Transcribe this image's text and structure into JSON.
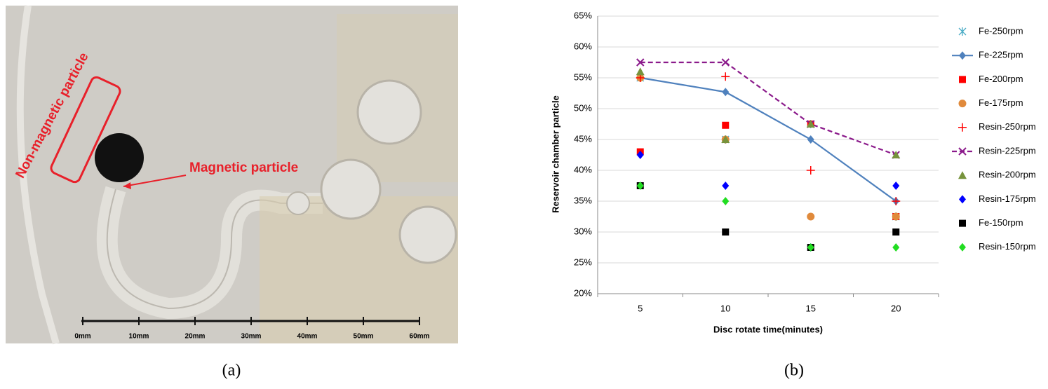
{
  "photo": {
    "annotations": [
      "Non-magnetic particle",
      "Magnetic particle"
    ],
    "scale_labels": [
      "0mm",
      "10mm",
      "20mm",
      "30mm",
      "40mm",
      "50mm",
      "60mm"
    ]
  },
  "panel_labels": [
    "(a)",
    "(b)"
  ],
  "chart_data": {
    "type": "line",
    "x_label": "Disc rotate time(minutes)",
    "y_label": "Reservoir chamber particle",
    "categories": [
      "5",
      "10",
      "15",
      "20"
    ],
    "ylim": [
      20,
      65
    ],
    "yticks": [
      {
        "value": 20,
        "label": "20%"
      },
      {
        "value": 25,
        "label": "25%"
      },
      {
        "value": 30,
        "label": "30%"
      },
      {
        "value": 35,
        "label": "35%"
      },
      {
        "value": 40,
        "label": "40%"
      },
      {
        "value": 45,
        "label": "45%"
      },
      {
        "value": 50,
        "label": "50%"
      },
      {
        "value": 55,
        "label": "55%"
      },
      {
        "value": 60,
        "label": "60%"
      },
      {
        "value": 65,
        "label": "65%"
      }
    ],
    "grid": true,
    "legend": "right",
    "series": [
      {
        "name": "Fe-250rpm",
        "color": "#4bacc6",
        "marker": "asterisk",
        "line": "none",
        "values": [
          55,
          45,
          47.5,
          32.5
        ]
      },
      {
        "name": "Fe-225rpm",
        "color": "#4f81bd",
        "marker": "diamond",
        "line": "solid",
        "values": [
          55,
          52.7,
          45,
          35
        ]
      },
      {
        "name": "Fe-200rpm",
        "color": "#ff0000",
        "marker": "square",
        "line": "none",
        "values": [
          43,
          47.3,
          47.5,
          32.5
        ]
      },
      {
        "name": "Fe-175rpm",
        "color": "#e08a3c",
        "marker": "circle",
        "line": "none",
        "values": [
          55,
          45,
          32.5,
          32.5
        ]
      },
      {
        "name": "Resin-250rpm",
        "color": "#ff0000",
        "marker": "plus",
        "line": "none",
        "values": [
          55,
          55.2,
          40,
          35
        ]
      },
      {
        "name": "Resin-225rpm",
        "color": "#8b1a8b",
        "marker": "x",
        "line": "dashed",
        "values": [
          57.5,
          57.5,
          47.5,
          42.5
        ]
      },
      {
        "name": "Resin-200rpm",
        "color": "#77933c",
        "marker": "triangle",
        "line": "none",
        "values": [
          56,
          45,
          47.5,
          42.5
        ]
      },
      {
        "name": "Resin-175rpm",
        "color": "#0000ff",
        "marker": "diamond",
        "line": "none",
        "values": [
          42.5,
          37.5,
          27.5,
          37.5
        ]
      },
      {
        "name": "Fe-150rpm",
        "color": "#000000",
        "marker": "square",
        "line": "none",
        "values": [
          37.5,
          30,
          27.5,
          30
        ]
      },
      {
        "name": "Resin-150rpm",
        "color": "#22dd22",
        "marker": "diamond",
        "line": "none",
        "values": [
          37.5,
          35,
          27.5,
          27.5
        ]
      }
    ]
  }
}
